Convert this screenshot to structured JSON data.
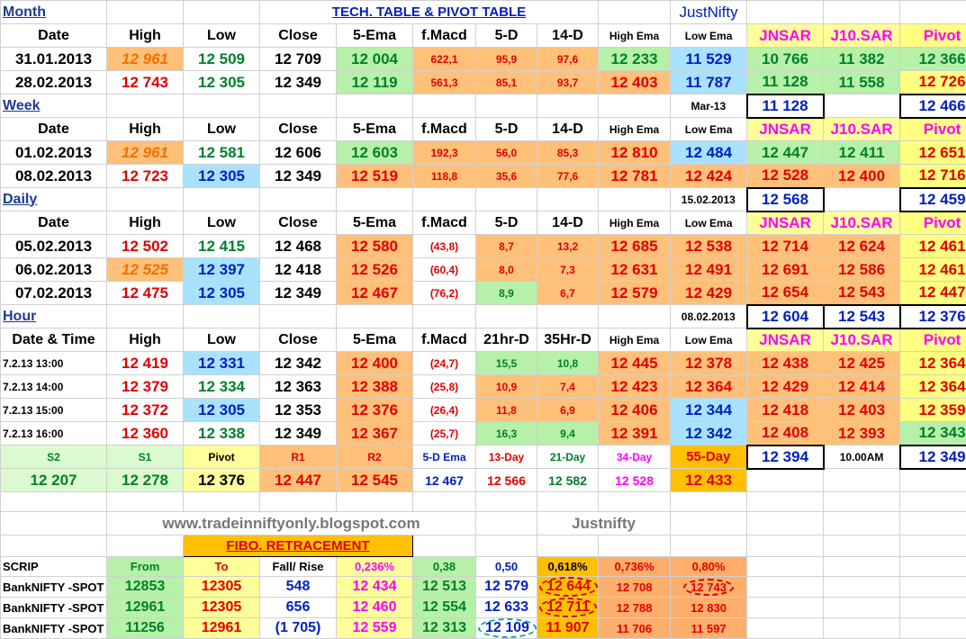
{
  "title": "TECH. TABLE  & PIVOT TABLE",
  "brand": "JustNifty",
  "hdr": {
    "date": "Date",
    "high": "High",
    "low": "Low",
    "close": "Close",
    "ema5": "5-Ema",
    "fmacd": "f.Macd",
    "d5": "5-D",
    "d14": "14-D",
    "hema": "High Ema",
    "lema": "Low Ema",
    "jnsar": "JNSAR",
    "j10": "J10.SAR",
    "pivot": "Pivot",
    "datetime": "Date & Time",
    "h21": "21hr-D",
    "h35": "35Hr-D"
  },
  "month": {
    "label": "Month",
    "rows": [
      [
        "31.01.2013",
        "12 961",
        "12 509",
        "12 709",
        "12 004",
        "622,1",
        "95,9",
        "97,6",
        "12 233",
        "11 529",
        "10 766",
        "11 382",
        "12 366"
      ],
      [
        "28.02.2013",
        "12 743",
        "12 305",
        "12 349",
        "12 119",
        "561,3",
        "85,1",
        "93,7",
        "12 403",
        "11 787",
        "11 128",
        "11 558",
        "12 726"
      ]
    ],
    "next_label": "Mar-13",
    "next_jnsar": "11 128",
    "next_pivot": "12 466"
  },
  "week": {
    "label": "Week",
    "rows": [
      [
        "01.02.2013",
        "12 961",
        "12 581",
        "12 606",
        "12 603",
        "192,3",
        "56,0",
        "85,3",
        "12 810",
        "12 484",
        "12 447",
        "12 411",
        "12 651"
      ],
      [
        "08.02.2013",
        "12 723",
        "12 305",
        "12 349",
        "12 519",
        "118,8",
        "35,6",
        "77,6",
        "12 781",
        "12 424",
        "12 528",
        "12 400",
        "12 716"
      ]
    ],
    "next_label": "15.02.2013",
    "next_jnsar": "12 568",
    "next_pivot": "12 459"
  },
  "daily": {
    "label": "Daily",
    "rows": [
      [
        "05.02.2013",
        "12 502",
        "12 415",
        "12 468",
        "12 580",
        "(43,8)",
        "8,7",
        "13,2",
        "12 685",
        "12 538",
        "12 714",
        "12 624",
        "12 461"
      ],
      [
        "06.02.2013",
        "12 525",
        "12 397",
        "12 418",
        "12 526",
        "(60,4)",
        "8,0",
        "7,3",
        "12 631",
        "12 491",
        "12 691",
        "12 586",
        "12 461"
      ],
      [
        "07.02.2013",
        "12 475",
        "12 305",
        "12 349",
        "12 467",
        "(76,2)",
        "8,9",
        "6,7",
        "12 579",
        "12 429",
        "12 654",
        "12 543",
        "12 447"
      ]
    ],
    "next_label": "08.02.2013",
    "next_jnsar": "12 604",
    "next_j10": "12 543",
    "next_pivot": "12 376"
  },
  "hour": {
    "label": "Hour",
    "rows": [
      [
        "7.2.13 13:00",
        "12 419",
        "12 331",
        "12 342",
        "12 400",
        "(24,7)",
        "15,5",
        "10,8",
        "12 445",
        "12 378",
        "12 438",
        "12 425",
        "12 364"
      ],
      [
        "7.2.13 14:00",
        "12 379",
        "12 334",
        "12 363",
        "12 388",
        "(25,8)",
        "10,9",
        "7,4",
        "12 423",
        "12 364",
        "12 429",
        "12 414",
        "12 364"
      ],
      [
        "7.2.13 15:00",
        "12 372",
        "12 305",
        "12 353",
        "12 376",
        "(26,4)",
        "11,8",
        "6,9",
        "12 406",
        "12 344",
        "12 418",
        "12 403",
        "12 359"
      ],
      [
        "7.2.13 16:00",
        "12 360",
        "12 338",
        "12 349",
        "12 367",
        "(25,7)",
        "16,3",
        "9,4",
        "12 391",
        "12 342",
        "12 408",
        "12 393",
        "12 343"
      ]
    ],
    "next_jnsar": "12 394",
    "next_time": "10.00AM",
    "next_pivot": "12 349"
  },
  "levels": {
    "labels": [
      "S2",
      "S1",
      "Pivot",
      "R1",
      "R2",
      "5-D Ema",
      "13-Day",
      "21-Day",
      "34-Day",
      "55-Day"
    ],
    "values": [
      "12 207",
      "12 278",
      "12 376",
      "12 447",
      "12 545",
      "12 467",
      "12 566",
      "12 582",
      "12 528",
      "12 433"
    ]
  },
  "website": "www.tradeinniftyonly.blogspot.com",
  "watermark": "Justnifty",
  "fibo": {
    "title": "FIBO. RETRACEMENT",
    "headers": [
      "SCRIP",
      "From",
      "To",
      "Fall/ Rise",
      "0,236%",
      "0,38",
      "0,50",
      "0,618%",
      "0,736%",
      "0,80%"
    ],
    "rows": [
      [
        "BankNIFTY -SPOT",
        "12853",
        "12305",
        "548",
        "12 434",
        "12 513",
        "12 579",
        "12 644",
        "12 708",
        "12 743"
      ],
      [
        "BankNIFTY -SPOT",
        "12961",
        "12305",
        "656",
        "12 460",
        "12 554",
        "12 633",
        "12 711",
        "12 788",
        "12 830"
      ],
      [
        "BankNIFTY -SPOT",
        "11256",
        "12961",
        "(1 705)",
        "12 559",
        "12 313",
        "12 109",
        "11 907",
        "11 706",
        "11 597"
      ]
    ]
  }
}
